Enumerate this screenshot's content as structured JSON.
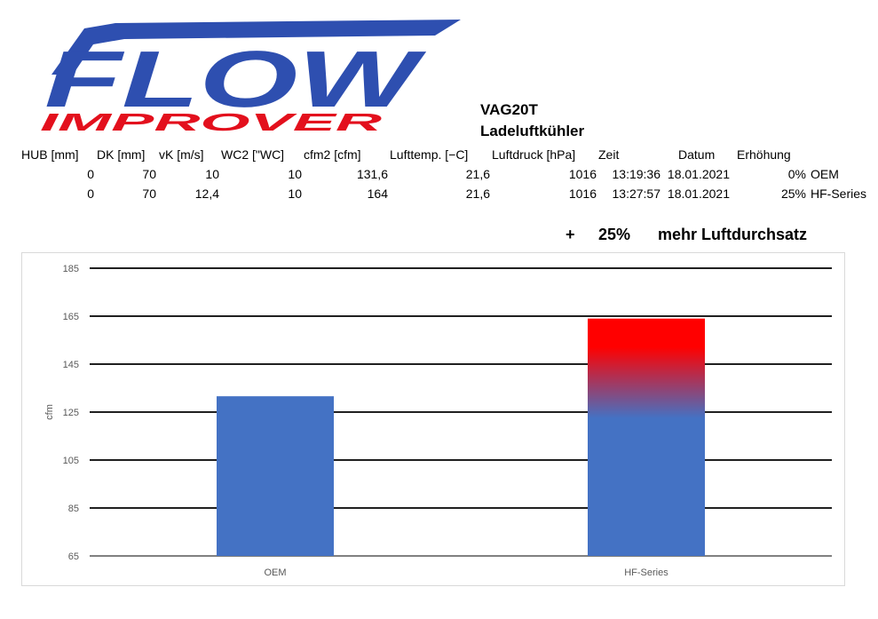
{
  "logo": {
    "line1": "FLOW",
    "line2": "IMPROVER",
    "colors": {
      "blue": "#2e4fb0",
      "red": "#e3101d"
    }
  },
  "heading": {
    "title": "VAG20T",
    "subtitle": "Ladeluftkühler"
  },
  "table": {
    "headers": [
      "HUB [mm]",
      "DK [mm]",
      "vK [m/s]",
      "WC2 [\"WC]",
      "cfm2 [cfm]",
      "Lufttemp. [−C]",
      "Luftdruck [hPa]",
      "Zeit",
      "Datum",
      "Erhöhung",
      ""
    ],
    "rows": [
      [
        "0",
        "70",
        "10",
        "10",
        "131,6",
        "21,6",
        "1016",
        "13:19:36",
        "18.01.2021",
        "0%",
        "OEM"
      ],
      [
        "0",
        "70",
        "12,4",
        "10",
        "164",
        "21,6",
        "1016",
        "13:27:57",
        "18.01.2021",
        "25%",
        "HF-Series"
      ]
    ]
  },
  "note": {
    "plus": "+",
    "percent": "25%",
    "text": "mehr Luftdurchsatz"
  },
  "chart_data": {
    "type": "bar",
    "categories": [
      "OEM",
      "HF-Series"
    ],
    "values": [
      131.6,
      164
    ],
    "ylabel": "cfm",
    "xlabel": "",
    "ylim": [
      65,
      185
    ],
    "yticks": [
      65,
      85,
      105,
      125,
      145,
      165,
      185
    ],
    "grid": true,
    "legend": "none",
    "colors": {
      "bar": "#4472c4",
      "highlight": "#ff0000",
      "grid": "#000000"
    }
  }
}
